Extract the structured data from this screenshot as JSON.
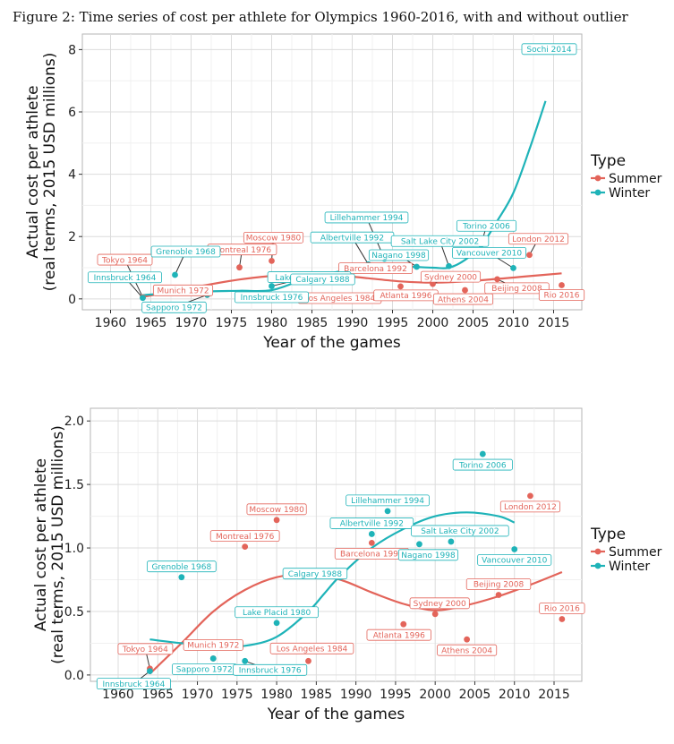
{
  "figure_title": "Figure 2: Time series of cost per athlete for Olympics 1960-2016, with and without outlier",
  "colors": {
    "Summer": "#E3645A",
    "Winter": "#1EB3B8"
  },
  "chart_data": [
    {
      "type": "scatter",
      "title": "",
      "xlabel": "Year of the games",
      "ylabel_line1": "Actual cost per athlete",
      "ylabel_line2": "(real terms, 2015 USD millions)",
      "xlim": [
        1956.5,
        2018.5
      ],
      "ylim": [
        -0.35,
        8.5
      ],
      "xticks": [
        1960,
        1965,
        1970,
        1975,
        1980,
        1985,
        1990,
        1995,
        2000,
        2005,
        2010,
        2015
      ],
      "yticks": [
        0,
        2,
        4,
        6,
        8
      ],
      "grid": true,
      "legend": {
        "title": "Type",
        "entries": [
          "Summer",
          "Winter"
        ],
        "position": "right"
      },
      "series": [
        {
          "name": "Summer",
          "points": [
            {
              "label": "Tokyo 1964",
              "x": 1964,
              "y": 0.05
            },
            {
              "label": "Munich 1972",
              "x": 1972,
              "y": 0.13
            },
            {
              "label": "Montreal 1976",
              "x": 1976,
              "y": 1.01
            },
            {
              "label": "Moscow 1980",
              "x": 1980,
              "y": 1.22
            },
            {
              "label": "Los Angeles 1984",
              "x": 1984,
              "y": 0.11
            },
            {
              "label": "Barcelona 1992",
              "x": 1992,
              "y": 1.04
            },
            {
              "label": "Atlanta 1996",
              "x": 1996,
              "y": 0.4
            },
            {
              "label": "Sydney 2000",
              "x": 2000,
              "y": 0.48
            },
            {
              "label": "Athens 2004",
              "x": 2004,
              "y": 0.28
            },
            {
              "label": "Beijing 2008",
              "x": 2008,
              "y": 0.63
            },
            {
              "label": "London 2012",
              "x": 2012,
              "y": 1.41
            },
            {
              "label": "Rio 2016",
              "x": 2016,
              "y": 0.44
            }
          ]
        },
        {
          "name": "Winter",
          "points": [
            {
              "label": "Innsbruck 1964",
              "x": 1964,
              "y": 0.03
            },
            {
              "label": "Grenoble 1968",
              "x": 1968,
              "y": 0.77
            },
            {
              "label": "Sapporo 1972",
              "x": 1972,
              "y": 0.13
            },
            {
              "label": "Innsbruck 1976",
              "x": 1976,
              "y": 0.11
            },
            {
              "label": "Lake Placid 1980",
              "x": 1980,
              "y": 0.41
            },
            {
              "label": "Calgary 1988",
              "x": 1988,
              "y": 0.77
            },
            {
              "label": "Albertville 1992",
              "x": 1992,
              "y": 1.11
            },
            {
              "label": "Lillehammer 1994",
              "x": 1994,
              "y": 1.29
            },
            {
              "label": "Nagano 1998",
              "x": 1998,
              "y": 1.03
            },
            {
              "label": "Salt Lake City 2002",
              "x": 2002,
              "y": 1.05
            },
            {
              "label": "Torino 2006",
              "x": 2006,
              "y": 1.74
            },
            {
              "label": "Vancouver 2010",
              "x": 2010,
              "y": 0.99
            },
            {
              "label": "Sochi 2014",
              "x": 2014,
              "y": 7.96
            }
          ]
        }
      ],
      "trend_lines": [
        {
          "name": "Summer",
          "x": [
            1964,
            1968,
            1972,
            1976,
            1980,
            1984,
            1988,
            1992,
            1996,
            2000,
            2004,
            2008,
            2012,
            2016
          ],
          "y": [
            0.06,
            0.25,
            0.45,
            0.62,
            0.74,
            0.79,
            0.76,
            0.66,
            0.56,
            0.52,
            0.56,
            0.64,
            0.73,
            0.82
          ]
        },
        {
          "name": "Winter",
          "x": [
            1964,
            1968,
            1972,
            1976,
            1980,
            1984,
            1988,
            1992,
            1996,
            2000,
            2002,
            2004,
            2006,
            2008,
            2010,
            2012,
            2014
          ],
          "y": [
            0.12,
            0.2,
            0.24,
            0.26,
            0.28,
            0.62,
            0.86,
            1.0,
            1.04,
            1.0,
            1.0,
            1.25,
            1.7,
            2.5,
            3.4,
            4.8,
            6.35
          ]
        }
      ]
    },
    {
      "type": "scatter",
      "title": "",
      "xlabel": "Year of the games",
      "ylabel_line1": "Actual cost per athlete",
      "ylabel_line2": "(real terms, 2015 USD millions)",
      "xlim": [
        1956.5,
        2018.5
      ],
      "ylim": [
        -0.05,
        2.1
      ],
      "xticks": [
        1960,
        1965,
        1970,
        1975,
        1980,
        1985,
        1990,
        1995,
        2000,
        2005,
        2010,
        2015
      ],
      "yticks": [
        0.0,
        0.5,
        1.0,
        1.5,
        2.0
      ],
      "ytick_labels": [
        "0.0",
        "0.5",
        "1.0",
        "1.5",
        "2.0"
      ],
      "grid": true,
      "legend": {
        "title": "Type",
        "entries": [
          "Summer",
          "Winter"
        ],
        "position": "right"
      },
      "series": [
        {
          "name": "Summer",
          "points": [
            {
              "label": "Tokyo 1964",
              "x": 1964,
              "y": 0.05
            },
            {
              "label": "Munich 1972",
              "x": 1972,
              "y": 0.13
            },
            {
              "label": "Montreal 1976",
              "x": 1976,
              "y": 1.01
            },
            {
              "label": "Moscow 1980",
              "x": 1980,
              "y": 1.22
            },
            {
              "label": "Los Angeles 1984",
              "x": 1984,
              "y": 0.11
            },
            {
              "label": "Barcelona 1992",
              "x": 1992,
              "y": 1.04
            },
            {
              "label": "Atlanta 1996",
              "x": 1996,
              "y": 0.4
            },
            {
              "label": "Sydney 2000",
              "x": 2000,
              "y": 0.48
            },
            {
              "label": "Athens 2004",
              "x": 2004,
              "y": 0.28
            },
            {
              "label": "Beijing 2008",
              "x": 2008,
              "y": 0.63
            },
            {
              "label": "London 2012",
              "x": 2012,
              "y": 1.41
            },
            {
              "label": "Rio 2016",
              "x": 2016,
              "y": 0.44
            }
          ]
        },
        {
          "name": "Winter",
          "points": [
            {
              "label": "Innsbruck 1964",
              "x": 1964,
              "y": 0.03
            },
            {
              "label": "Grenoble 1968",
              "x": 1968,
              "y": 0.77
            },
            {
              "label": "Sapporo 1972",
              "x": 1972,
              "y": 0.13
            },
            {
              "label": "Innsbruck 1976",
              "x": 1976,
              "y": 0.11
            },
            {
              "label": "Lake Placid 1980",
              "x": 1980,
              "y": 0.41
            },
            {
              "label": "Calgary 1988",
              "x": 1988,
              "y": 0.77
            },
            {
              "label": "Albertville 1992",
              "x": 1992,
              "y": 1.11
            },
            {
              "label": "Lillehammer 1994",
              "x": 1994,
              "y": 1.29
            },
            {
              "label": "Nagano 1998",
              "x": 1998,
              "y": 1.03
            },
            {
              "label": "Salt Lake City 2002",
              "x": 2002,
              "y": 1.05
            },
            {
              "label": "Torino 2006",
              "x": 2006,
              "y": 1.74
            },
            {
              "label": "Vancouver 2010",
              "x": 2010,
              "y": 0.99
            }
          ]
        }
      ],
      "trend_lines": [
        {
          "name": "Summer",
          "x": [
            1964,
            1968,
            1972,
            1976,
            1980,
            1984,
            1988,
            1992,
            1996,
            2000,
            2004,
            2008,
            2012,
            2016
          ],
          "y": [
            0.01,
            0.25,
            0.5,
            0.67,
            0.77,
            0.79,
            0.75,
            0.65,
            0.56,
            0.51,
            0.55,
            0.62,
            0.71,
            0.81
          ]
        },
        {
          "name": "Winter",
          "x": [
            1964,
            1968,
            1972,
            1976,
            1980,
            1984,
            1986,
            1988,
            1992,
            1996,
            2000,
            2004,
            2008,
            2010
          ],
          "y": [
            0.28,
            0.25,
            0.23,
            0.23,
            0.3,
            0.5,
            0.64,
            0.78,
            1.0,
            1.15,
            1.25,
            1.28,
            1.25,
            1.2
          ]
        }
      ]
    }
  ]
}
